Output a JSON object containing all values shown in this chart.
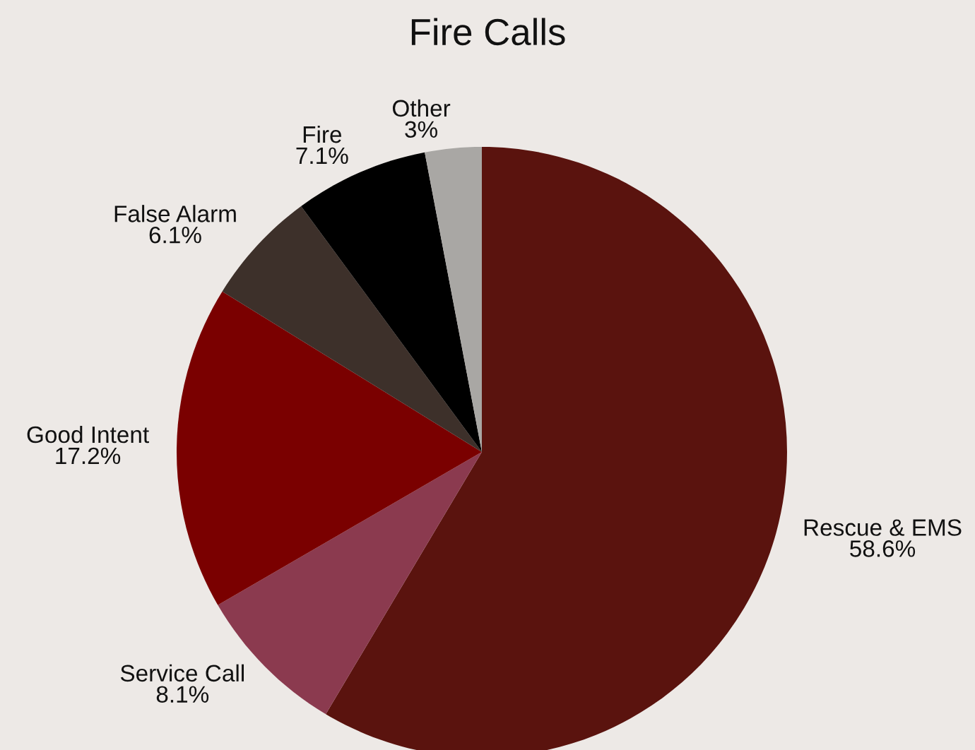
{
  "chart_data": {
    "type": "pie",
    "title": "Fire Calls",
    "categories": [
      "Rescue & EMS",
      "Service Call",
      "Good Intent",
      "False Alarm",
      "Fire",
      "Other"
    ],
    "values": [
      58.6,
      8.1,
      17.2,
      6.1,
      7.1,
      3
    ],
    "value_labels": [
      "58.6%",
      "8.1%",
      "17.2%",
      "6.1%",
      "7.1%",
      "3%"
    ],
    "colors": [
      "#5a130e",
      "#8b3a4f",
      "#7a0000",
      "#3d302a",
      "#000000",
      "#a9a7a4"
    ],
    "legend": false
  }
}
